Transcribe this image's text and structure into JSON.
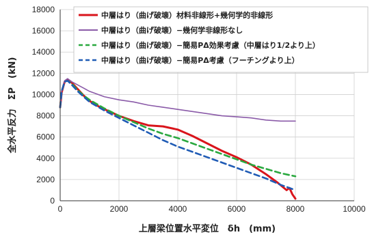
{
  "chart_data": {
    "type": "line",
    "xlabel": "上層梁位置水平変位　δh　(mm)",
    "ylabel": "全水平反力　ΣP　(kN)",
    "xlim": [
      0,
      10000
    ],
    "ylim": [
      0,
      18000
    ],
    "xticks": [
      0,
      2000,
      4000,
      6000,
      8000,
      10000
    ],
    "yticks": [
      0,
      2000,
      4000,
      6000,
      8000,
      10000,
      12000,
      14000,
      16000,
      18000
    ],
    "legend_position": "top-right",
    "series": [
      {
        "name": "中層はり（曲げ破壊）材料非線形+幾何学的非線形",
        "color": "#d9141b",
        "dash": "solid",
        "width": 3,
        "x": [
          0,
          50,
          150,
          250,
          400,
          600,
          800,
          1000,
          1300,
          1600,
          2000,
          2500,
          3000,
          3500,
          4000,
          4500,
          5000,
          5500,
          6000,
          6500,
          7000,
          7400,
          7700,
          7800,
          7900,
          8000
        ],
        "y": [
          8800,
          10200,
          11200,
          11400,
          11100,
          10500,
          9900,
          9400,
          8900,
          8500,
          8000,
          7500,
          7100,
          7000,
          6700,
          6100,
          5400,
          4700,
          4100,
          3400,
          2500,
          1700,
          1000,
          1200,
          600,
          200
        ]
      },
      {
        "name": "中層はり（曲げ破壊）−幾何学非線形なし",
        "color": "#8a5aa8",
        "dash": "solid",
        "width": 1.6,
        "x": [
          0,
          50,
          150,
          250,
          400,
          600,
          800,
          1000,
          1500,
          2000,
          2500,
          3000,
          3500,
          4000,
          4500,
          5000,
          5500,
          6000,
          6500,
          7000,
          7500,
          8000
        ],
        "y": [
          8800,
          10400,
          11300,
          11500,
          11200,
          10900,
          10600,
          10300,
          9800,
          9500,
          9300,
          9000,
          8800,
          8600,
          8400,
          8200,
          8000,
          7900,
          7800,
          7600,
          7500,
          7500
        ]
      },
      {
        "name": "中層はり（曲げ破壊）−簡易PΔ効果考慮（中層はり1/2より上）",
        "color": "#29a83e",
        "dash": "8,5",
        "width": 2.6,
        "x": [
          0,
          50,
          150,
          250,
          400,
          600,
          800,
          1000,
          1500,
          2000,
          2500,
          3000,
          3500,
          4000,
          4500,
          5000,
          5500,
          6000,
          6500,
          7000,
          7500,
          8000
        ],
        "y": [
          8800,
          10300,
          11200,
          11300,
          11000,
          10400,
          9900,
          9500,
          8700,
          8000,
          7400,
          6800,
          6300,
          5900,
          5400,
          4900,
          4400,
          3900,
          3400,
          3000,
          2600,
          2300
        ]
      },
      {
        "name": "中層はり（曲げ破壊）−簡易PΔ考慮（フーチングより上）",
        "color": "#1f5bb5",
        "dash": "8,5",
        "width": 2.6,
        "x": [
          0,
          50,
          150,
          250,
          400,
          600,
          800,
          1000,
          1500,
          2000,
          2500,
          3000,
          3500,
          4000,
          4500,
          5000,
          5500,
          6000,
          6500,
          7000,
          7500,
          8000
        ],
        "y": [
          8800,
          10300,
          11200,
          11300,
          10900,
          10300,
          9800,
          9300,
          8500,
          7800,
          7100,
          6400,
          5700,
          5100,
          4600,
          4100,
          3600,
          3100,
          2600,
          2100,
          1500,
          1000
        ]
      }
    ]
  }
}
